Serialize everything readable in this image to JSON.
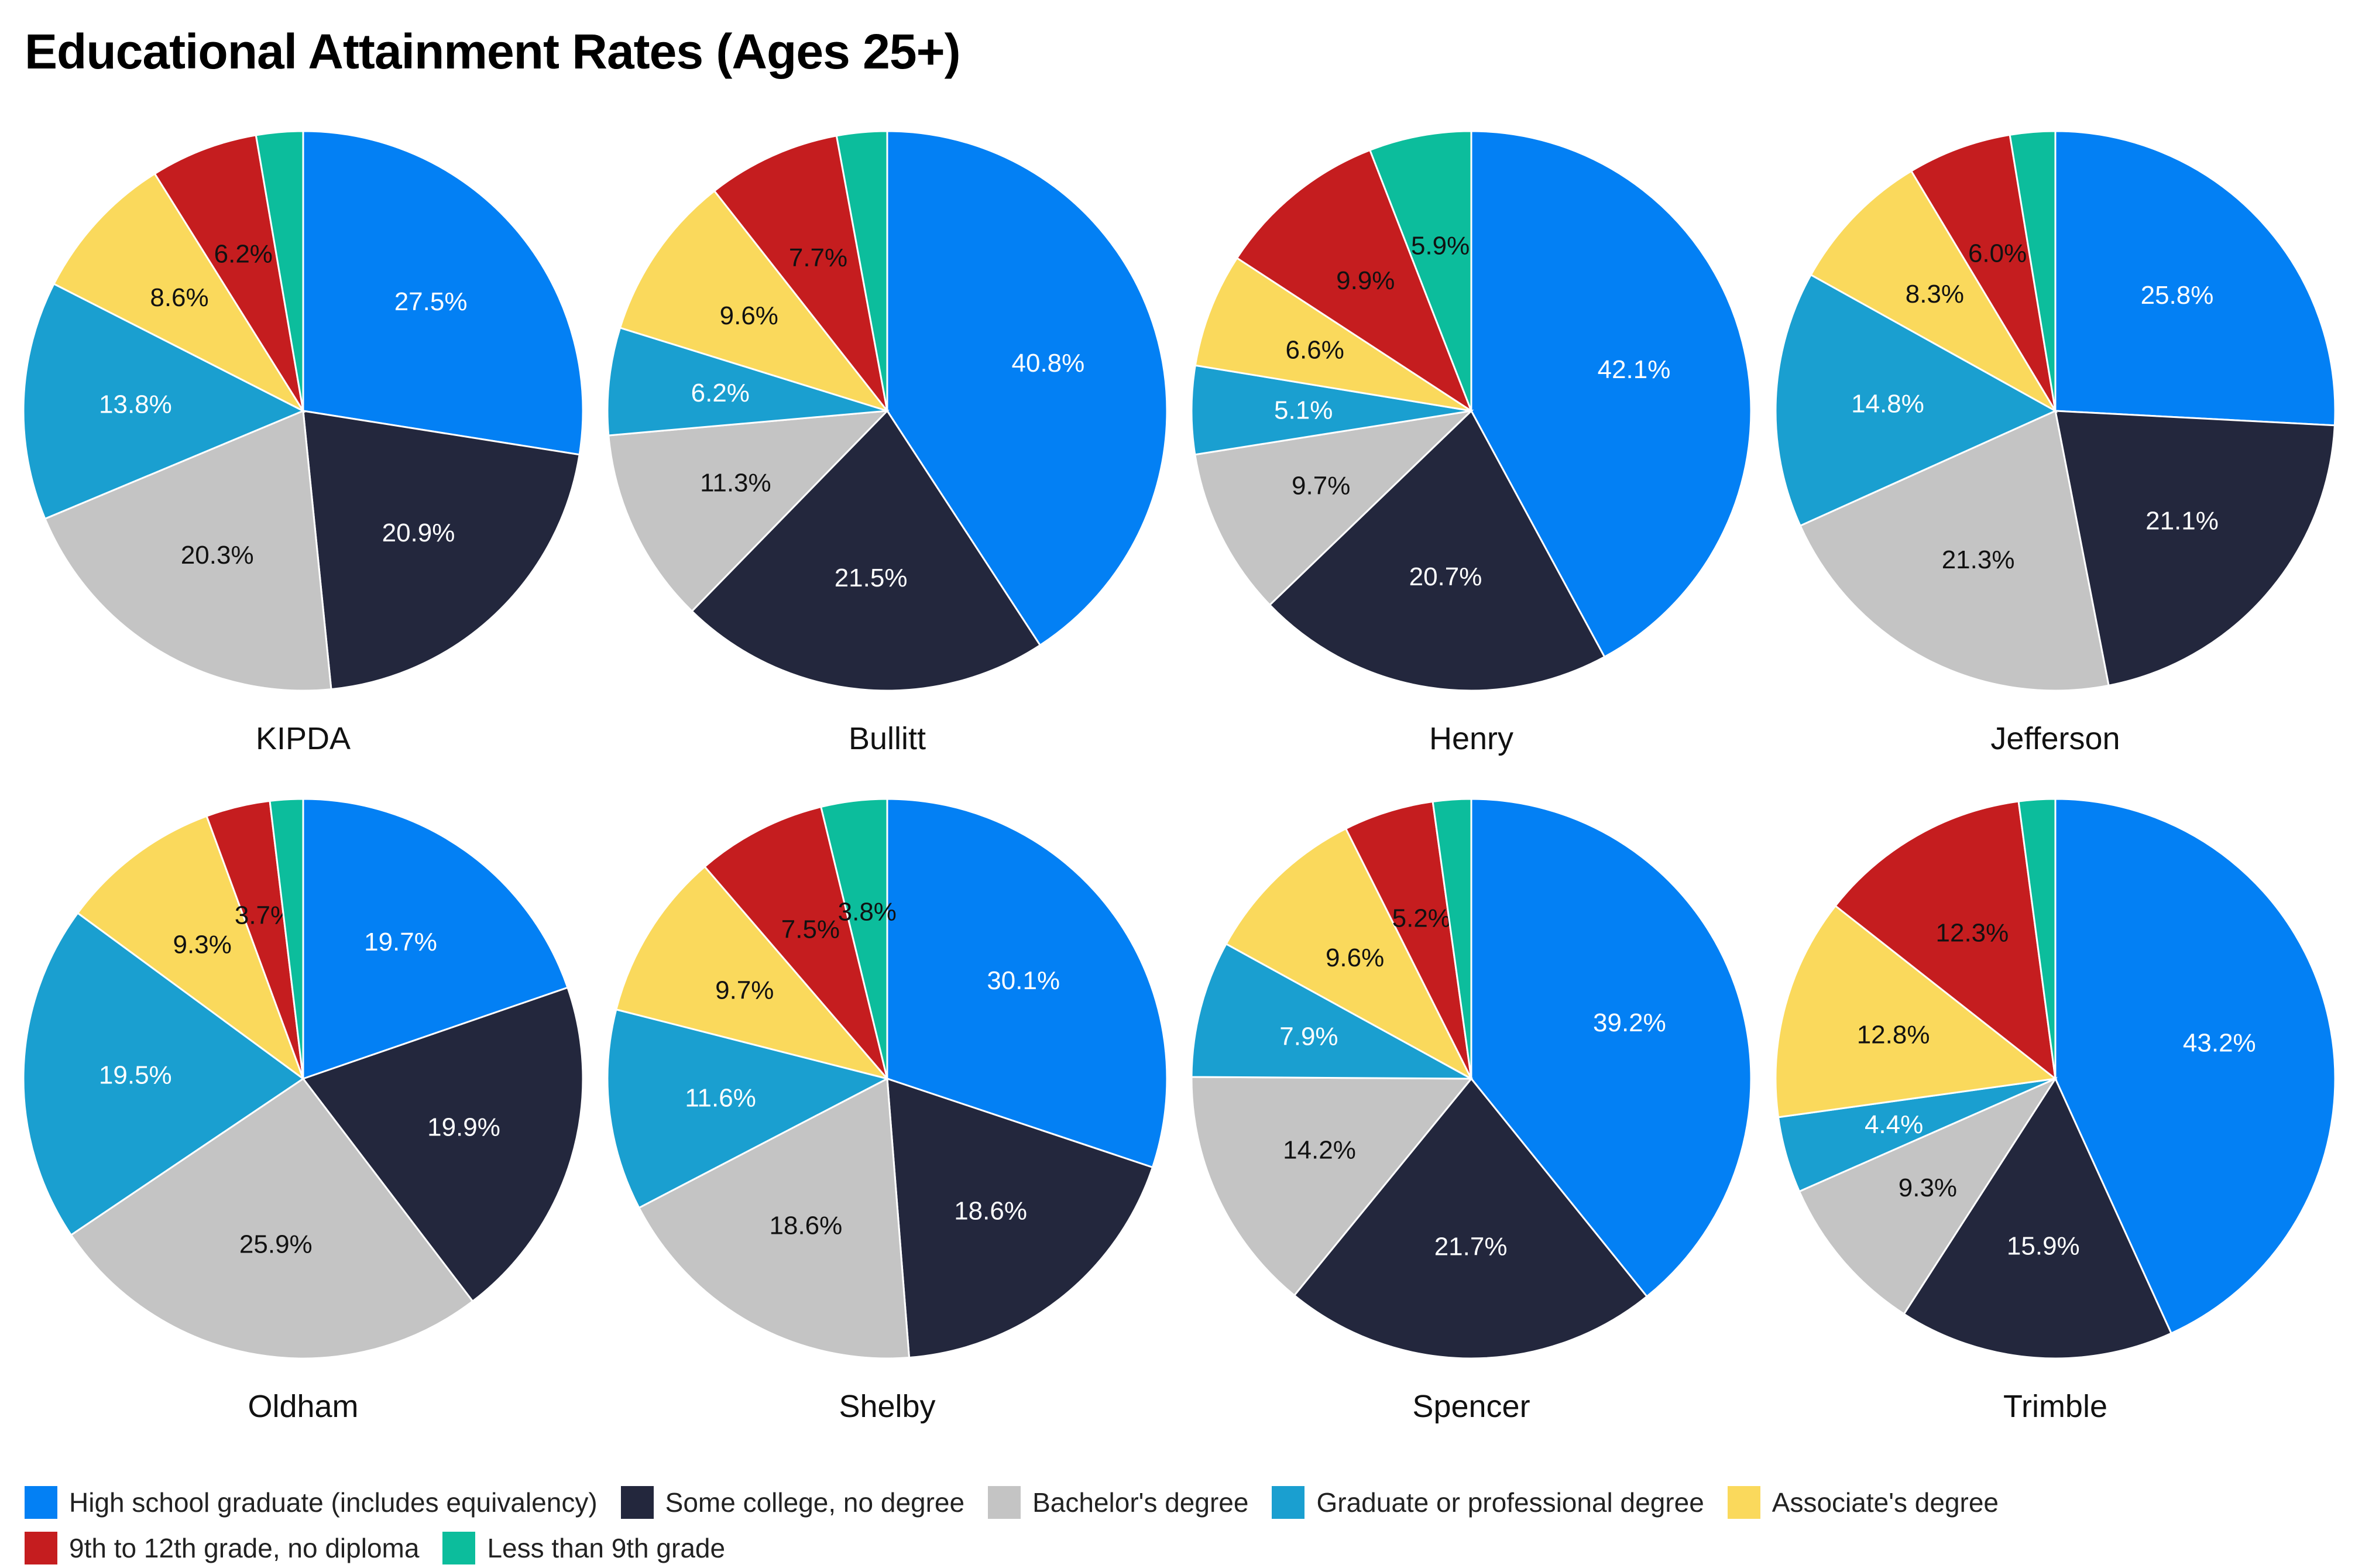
{
  "title": "Educational Attainment Rates (Ages 25+)",
  "categories": [
    "High school graduate (includes equivalency)",
    "Some college, no degree",
    "Bachelor's degree",
    "Graduate or professional degree",
    "Associate's degree",
    "9th to 12th grade, no diploma",
    "Less than 9th grade"
  ],
  "colors": [
    "#0380f4",
    "#23273d",
    "#c4c4c4",
    "#1a9fd0",
    "#fad95c",
    "#c51d1f",
    "#0cbd9c"
  ],
  "chart_data": {
    "type": "pie",
    "title": "Educational Attainment Rates (Ages 25+)",
    "unit": "%",
    "legend": "bottom",
    "pies": [
      {
        "name": "KIPDA",
        "values": [
          27.5,
          20.9,
          20.3,
          13.8,
          8.6,
          6.2,
          2.7
        ]
      },
      {
        "name": "Bullitt",
        "values": [
          40.8,
          21.5,
          11.3,
          6.2,
          9.6,
          7.7,
          2.9
        ]
      },
      {
        "name": "Henry",
        "values": [
          42.1,
          20.7,
          9.7,
          5.1,
          6.6,
          9.9,
          5.9
        ]
      },
      {
        "name": "Jefferson",
        "values": [
          25.8,
          21.1,
          21.3,
          14.8,
          8.3,
          6.0,
          2.6
        ]
      },
      {
        "name": "Oldham",
        "values": [
          19.7,
          19.9,
          25.9,
          19.5,
          9.3,
          3.7,
          1.9
        ]
      },
      {
        "name": "Shelby",
        "values": [
          30.1,
          18.6,
          18.6,
          11.6,
          9.7,
          7.5,
          3.8
        ]
      },
      {
        "name": "Spencer",
        "values": [
          39.2,
          21.7,
          14.2,
          7.9,
          9.6,
          5.2,
          2.2
        ]
      },
      {
        "name": "Trimble",
        "values": [
          43.2,
          15.9,
          9.3,
          4.4,
          12.8,
          12.3,
          2.1
        ]
      }
    ]
  }
}
